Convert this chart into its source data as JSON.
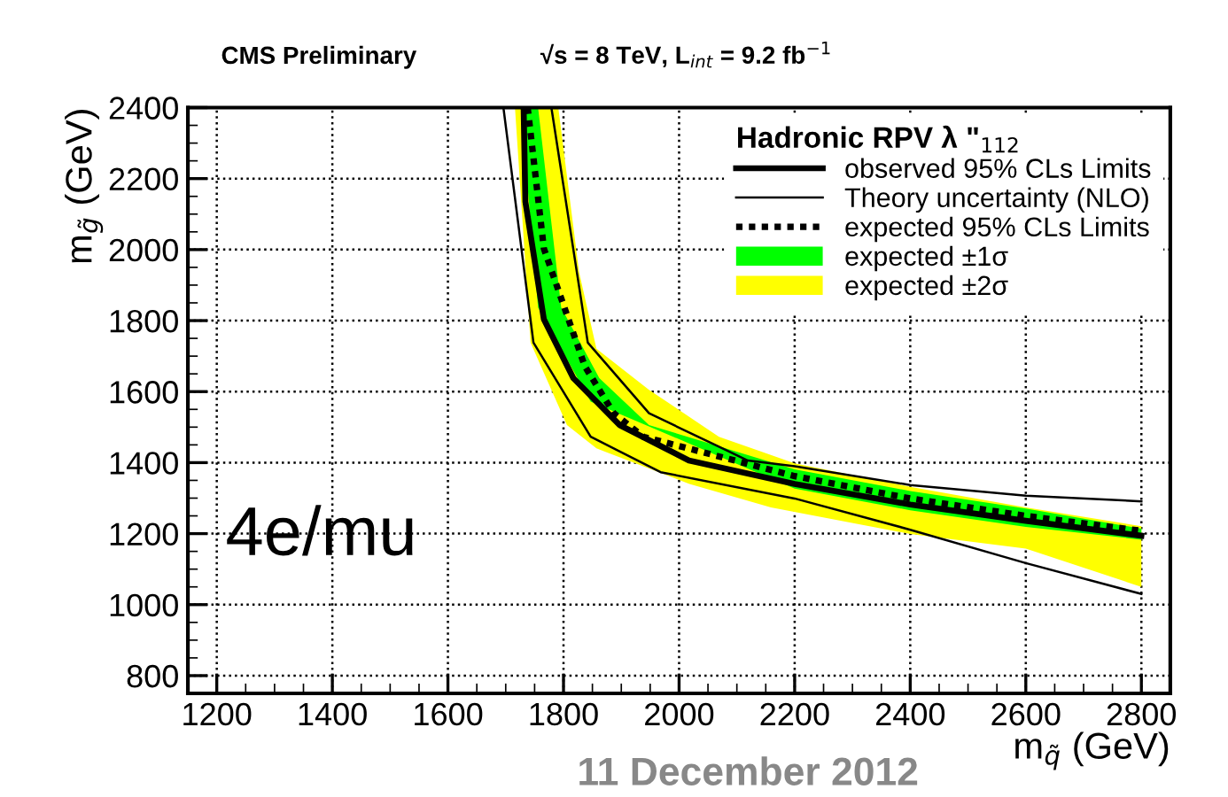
{
  "chart_data": {
    "type": "line",
    "title": "CMS Preliminary",
    "subtitle": "√s = 8 TeV, L$_{int}$ = 9.2 fb$^{−1}$",
    "xlabel": "m$_{q̃}$ (GeV)",
    "ylabel": "m$_{g̃}$ (GeV)",
    "legend_title": "Hadronic RPV λ \"$_{112}$",
    "xlim": [
      1150,
      2850
    ],
    "ylim": [
      750,
      2400
    ],
    "xticks": [
      1200,
      1400,
      1600,
      1800,
      2000,
      2200,
      2400,
      2600,
      2800
    ],
    "yticks": [
      800,
      1000,
      1200,
      1400,
      1600,
      1800,
      2000,
      2200,
      2400
    ],
    "grid": true,
    "legend": "top right",
    "annotations": [
      "4e/mu",
      "11 December 2012"
    ],
    "series": [
      {
        "name": "observed 95% CLs Limits",
        "color": "#000000",
        "line_style": "solid",
        "x": [
          1731,
          1734,
          1766,
          1817,
          1897,
          2017,
          2200,
          2400,
          2600,
          2800
        ],
        "values": [
          2400,
          2135,
          1804,
          1638,
          1506,
          1406,
          1340,
          1282,
          1236,
          1194
        ]
      },
      {
        "name": "Theory uncertainty (NLO)",
        "color": "#000000",
        "line_style": "solid",
        "x": [
          1779,
          1842,
          1948,
          2119,
          2200,
          2400,
          2600,
          2800
        ],
        "values": [
          2400,
          1738,
          1539,
          1406,
          1390,
          1337,
          1307,
          1291
        ]
      },
      {
        "name": "expected 95% CLs Limits",
        "color": "#000000",
        "line_style": "dotted",
        "x": [
          1738,
          1766,
          1837,
          1887,
          1938,
          2200,
          2400,
          2600,
          2800
        ],
        "values": [
          2400,
          2003,
          1671,
          1539,
          1473,
          1362,
          1299,
          1250,
          1208
        ]
      },
      {
        "name": "expected ±1σ",
        "type": "area",
        "color": "#00ff00",
        "x": [
          1726,
          1756,
          1847,
          2200,
          2400,
          2600,
          2800,
          2800,
          2600,
          2400,
          2200,
          1948,
          1862,
          1796,
          1756
        ],
        "values": [
          2400,
          1837,
          1572,
          1327,
          1266,
          1219,
          1183,
          1214,
          1271,
          1320,
          1381,
          1506,
          1638,
          1837,
          2400
        ]
      },
      {
        "name": "expected ±2σ",
        "type": "area",
        "color": "#ffff00",
        "x": [
          1716,
          1743,
          1806,
          1857,
          2018,
          2159,
          2400,
          2600,
          2800,
          2800,
          2600,
          2400,
          2200,
          2069,
          1948,
          1857,
          1827,
          1791
        ],
        "values": [
          2400,
          1738,
          1506,
          1440,
          1340,
          1274,
          1199,
          1158,
          1050,
          1221,
          1274,
          1332,
          1398,
          1473,
          1605,
          1721,
          1936,
          2400
        ]
      },
      {
        "color": "#000000",
        "line_style": "solid",
        "x": [
          1696,
          1748,
          1847,
          1968,
          2200,
          2400,
          2600,
          2800
        ],
        "values": [
          2400,
          1738,
          1473,
          1373,
          1299,
          1211,
          1117,
          1030
        ]
      }
    ]
  }
}
